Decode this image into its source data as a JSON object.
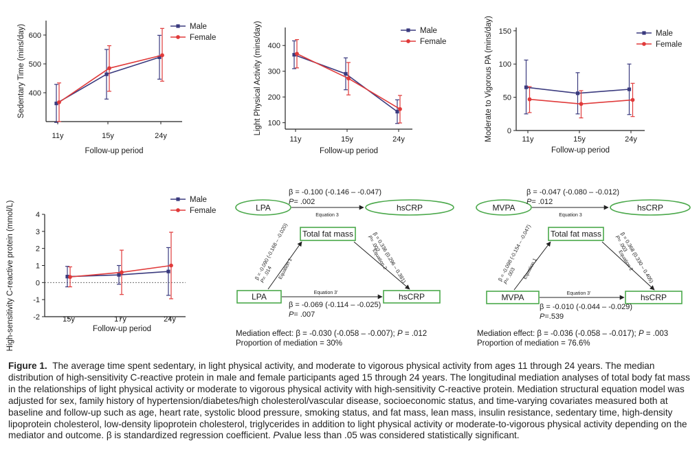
{
  "colors": {
    "male": "#3a3a7e",
    "female": "#e03a3a",
    "axis": "#222222",
    "box": "#4aa84a"
  },
  "chart_data": [
    {
      "type": "line",
      "panel": "sedentary",
      "ylabel": "Sedentary Time (mins/day)",
      "xlabel": "Follow-up period",
      "categories": [
        "11y",
        "15y",
        "24y"
      ],
      "ylim": [
        300,
        650
      ],
      "yticks": [
        400,
        500,
        600
      ],
      "series": [
        {
          "name": "Male",
          "values": [
            363,
            464,
            523
          ],
          "lower": [
            297,
            378,
            447
          ],
          "upper": [
            429,
            550,
            599
          ]
        },
        {
          "name": "Female",
          "values": [
            367,
            485,
            530
          ],
          "lower": [
            300,
            405,
            440
          ],
          "upper": [
            434,
            563,
            623
          ]
        }
      ]
    },
    {
      "type": "line",
      "panel": "light",
      "ylabel": "Light Physical Activity (mins/day)",
      "xlabel": "Follow-up period",
      "categories": [
        "11y",
        "15y",
        "24y"
      ],
      "ylim": [
        75,
        470
      ],
      "yticks": [
        100,
        200,
        300,
        400
      ],
      "series": [
        {
          "name": "Male",
          "values": [
            364,
            290,
            143
          ],
          "lower": [
            310,
            228,
            97
          ],
          "upper": [
            418,
            352,
            189
          ]
        },
        {
          "name": "Female",
          "values": [
            368,
            272,
            153
          ],
          "lower": [
            313,
            208,
            99
          ],
          "upper": [
            423,
            334,
            206
          ]
        }
      ]
    },
    {
      "type": "line",
      "panel": "mvpa",
      "ylabel": "Moderate to Vigorous PA (mins/day)",
      "xlabel": "Follow-up period",
      "categories": [
        "11y",
        "15y",
        "24y"
      ],
      "ylim": [
        0,
        155
      ],
      "yticks": [
        0,
        50,
        100,
        150
      ],
      "series": [
        {
          "name": "Male",
          "values": [
            65,
            56,
            62
          ],
          "lower": [
            25,
            25,
            24
          ],
          "upper": [
            106,
            87,
            100
          ]
        },
        {
          "name": "Female",
          "values": [
            47,
            40,
            46
          ],
          "lower": [
            27,
            19,
            21
          ],
          "upper": [
            66,
            60,
            71
          ]
        }
      ]
    },
    {
      "type": "line",
      "panel": "hscrp",
      "ylabel": "High-sensitivity C-reactive protein (mmol/L)",
      "xlabel": "Follow-up period",
      "categories": [
        "15y",
        "17y",
        "24y"
      ],
      "ylim": [
        -2,
        4
      ],
      "yticks": [
        -2,
        -1,
        0,
        1,
        2,
        3,
        4
      ],
      "series": [
        {
          "name": "Male",
          "values": [
            0.35,
            0.45,
            0.65
          ],
          "lower": [
            -0.25,
            -0.1,
            -0.75
          ],
          "upper": [
            0.95,
            1.0,
            2.05
          ]
        },
        {
          "name": "Female",
          "values": [
            0.33,
            0.6,
            1.0
          ],
          "lower": [
            -0.25,
            -0.7,
            -0.95
          ],
          "upper": [
            0.92,
            1.9,
            2.95
          ]
        }
      ]
    }
  ],
  "diagrams": [
    {
      "exposure": "LPA",
      "mediator": "Total fat mass",
      "outcome": "hsCRP",
      "top_beta": "β = -0.100 (-0.146 – -0.047)",
      "top_p": "= .002",
      "eq3_label": "Equation 3",
      "eq1_beta": "β = -0.090 (-0.168 – -0.020)",
      "eq1_p": "= .014",
      "eq1_label": "Equation 1",
      "eq2_beta": "β = 0.336 (0.296 – 0.381)",
      "eq2_p": "= .002",
      "eq2_label": "Equation 2",
      "eq3p_label": "Equation 3'",
      "bottom_beta": "β = -0.069 (-0.114 – -0.025)",
      "bottom_p": "= .007",
      "med_effect_prefix": "Mediation effect: β = -0.030 (-0.058 – -0.007); ",
      "med_effect_p": " = .012",
      "proportion": "Proportion of mediation = 30%"
    },
    {
      "exposure": "MVPA",
      "mediator": "Total fat mass",
      "outcome": "hsCRP",
      "top_beta": "β = -0.047 (-0.080 – -0.012)",
      "top_p": "= .012",
      "eq3_label": "Equation 3",
      "eq1_beta": "β = -0.098 (-0.154 – -0.047)",
      "eq1_p": "= .003",
      "eq1_label": "Equation 1",
      "eq2_beta": "β = 0.368 (0.330 – 0.405)",
      "eq2_p": "= .003",
      "eq2_label": "Equation 2",
      "eq3p_label": "Equation 3'",
      "bottom_beta": "β = -0.010 (-0.044 – -0.029)",
      "bottom_p": "=.539",
      "med_effect_prefix": "Mediation effect: β = -0.036 (-0.058 – -0.017); ",
      "med_effect_p": " = .003",
      "proportion": "Proportion of mediation = 76.6%"
    }
  ],
  "p_letter": "P",
  "caption": {
    "label": "Figure 1.",
    "text": "The average time spent sedentary, in light physical activity, and moderate to vigorous physical activity from ages 11 through 24 years. The median distribution of high-sensitivity C-reactive protein in male and female participants aged 15 through 24 years. The longitudinal mediation analyses of total body fat mass in the relationships of light physical activity or moderate to vigorous physical activity with high-sensitivity C-reactive protein. Mediation structural equation model was adjusted for sex, family history of hypertension/diabetes/high cholesterol/vascular disease, socioeconomic status, and time-varying covariates measured both at baseline and follow-up such as age, heart rate, systolic blood pressure, smoking status, and fat mass, lean mass, insulin resistance, sedentary time, high-density lipoprotein cholesterol, low-density lipoprotein cholesterol, triglycerides in addition to light physical activity or moderate-to-vigorous physical activity depending on the mediator and outcome. β is standardized regression coefficient.",
    "p_italic": "P",
    "tail": "value less than .05 was considered statistically significant."
  }
}
